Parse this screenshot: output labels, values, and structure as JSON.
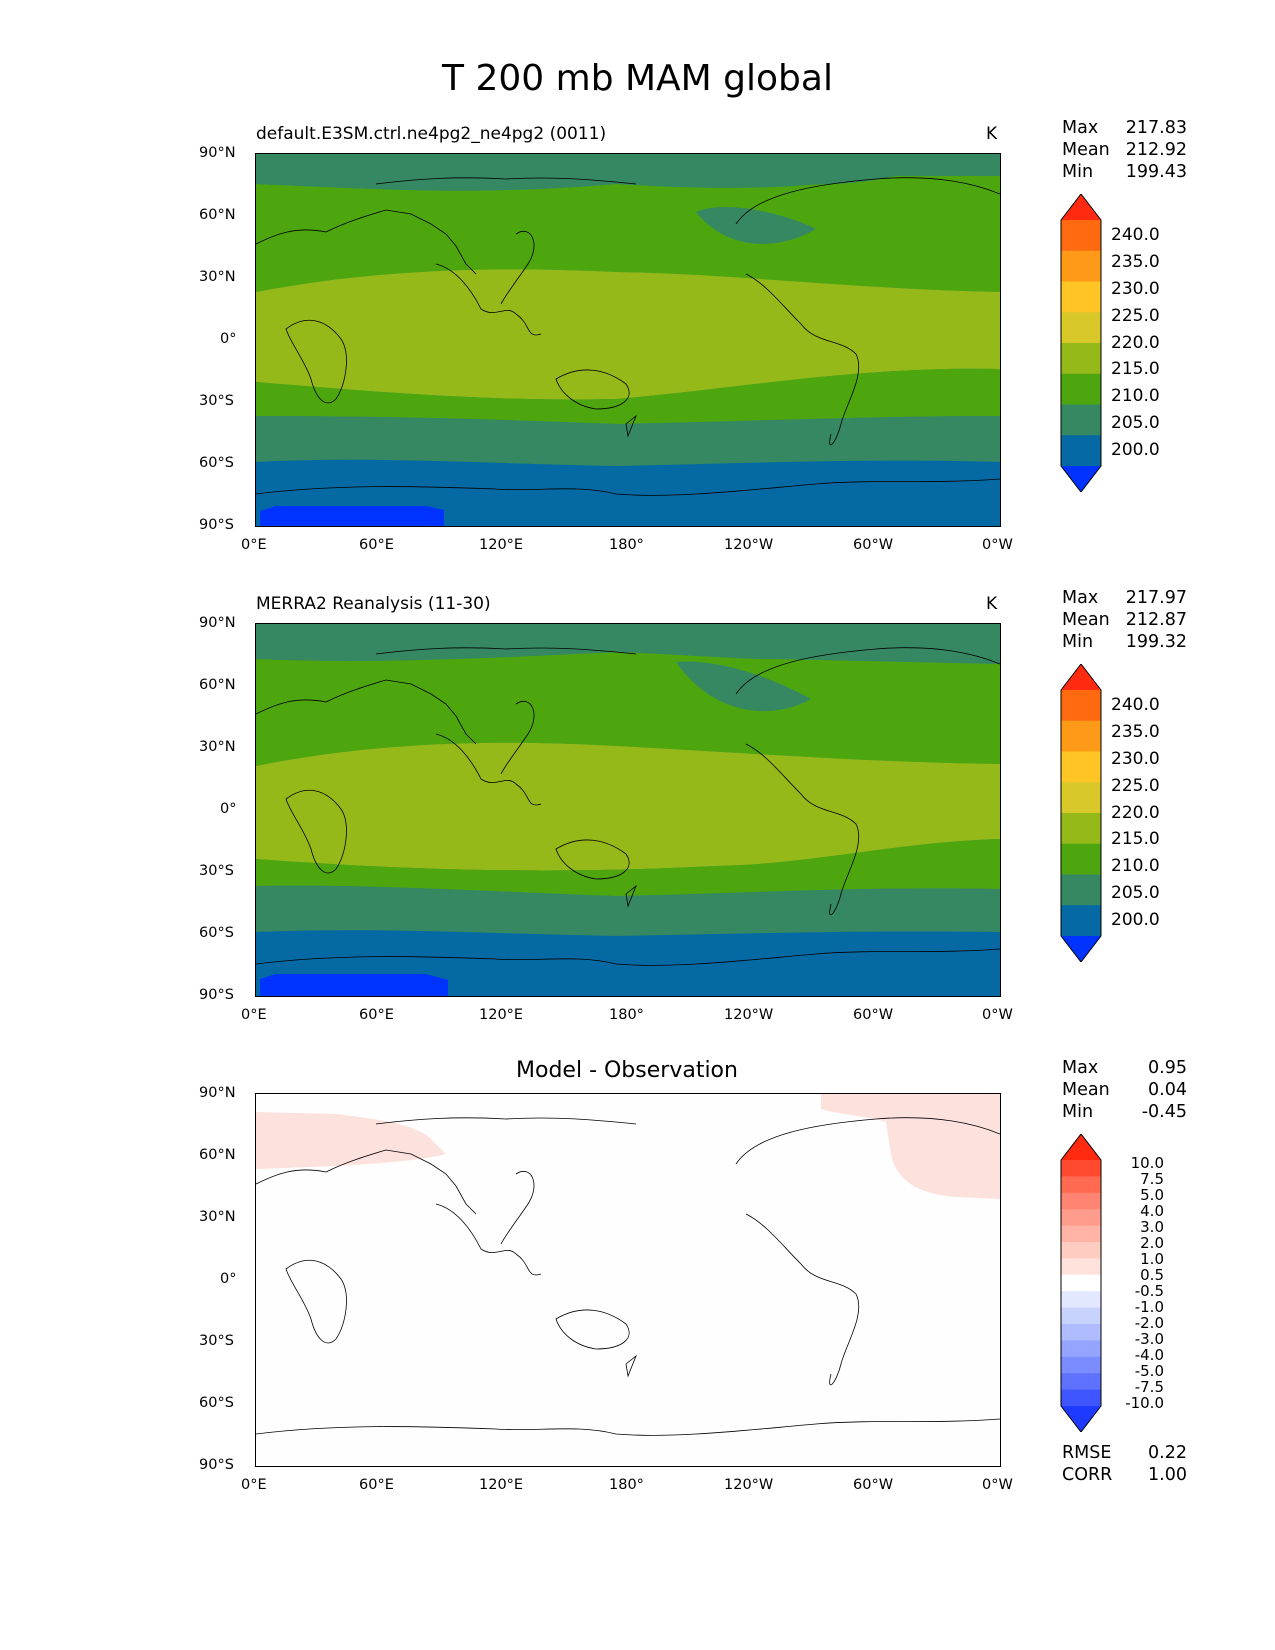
{
  "title": "T 200 mb MAM global",
  "x_ticks": [
    "0°E",
    "60°E",
    "120°E",
    "180°",
    "120°W",
    "60°W",
    "0°W"
  ],
  "y_ticks": [
    "90°N",
    "60°N",
    "30°N",
    "0°",
    "30°S",
    "60°S",
    "90°S"
  ],
  "panels": [
    {
      "title": "default.E3SM.ctrl.ne4pg2_ne4pg2 (0011)",
      "units": "K",
      "stats": {
        "max_label": "Max",
        "max": "217.83",
        "mean_label": "Mean",
        "mean": "212.92",
        "min_label": "Min",
        "min": "199.43"
      }
    },
    {
      "title": "MERRA2 Reanalysis (11-30)",
      "units": "K",
      "stats": {
        "max_label": "Max",
        "max": "217.97",
        "mean_label": "Mean",
        "mean": "212.87",
        "min_label": "Min",
        "min": "199.32"
      }
    },
    {
      "title": "Model - Observation",
      "units": "",
      "stats": {
        "max_label": "Max",
        "max": "0.95",
        "mean_label": "Mean",
        "mean": "0.04",
        "min_label": "Min",
        "min": "-0.45"
      },
      "extra": {
        "rmse_label": "RMSE",
        "rmse": "0.22",
        "corr_label": "CORR",
        "corr": "1.00"
      }
    }
  ],
  "colorbar_abs": {
    "labels": [
      "240.0",
      "235.0",
      "230.0",
      "225.0",
      "220.0",
      "215.0",
      "210.0",
      "205.0",
      "200.0"
    ],
    "colors": [
      "#ff2a10",
      "#ff6a10",
      "#ff9a18",
      "#ffc524",
      "#d8c82a",
      "#96b91a",
      "#4ea60f",
      "#358861",
      "#0569a4",
      "#0033ff"
    ]
  },
  "colorbar_diff": {
    "labels": [
      "10.0",
      "7.5",
      "5.0",
      "4.0",
      "3.0",
      "2.0",
      "1.0",
      "0.5",
      "-0.5",
      "-1.0",
      "-2.0",
      "-3.0",
      "-4.0",
      "-5.0",
      "-7.5",
      "-10.0"
    ],
    "colors": [
      "#ff2a10",
      "#ff4a30",
      "#ff6a50",
      "#ff8472",
      "#ff9c8c",
      "#ffb4a6",
      "#ffccc2",
      "#ffe2dc",
      "#ffffff",
      "#e2e8ff",
      "#c8d2ff",
      "#afbcff",
      "#94a4ff",
      "#7a8cff",
      "#5e72ff",
      "#3f56ff",
      "#1e3aff"
    ]
  },
  "field_colors": {
    "lv200": "#0033ff",
    "lv205": "#0569a4",
    "lv210": "#358861",
    "lv215": "#4ea60f",
    "lv220": "#96b91a",
    "diff_pos": "#fde1dc",
    "diff_zero": "#fefefe"
  },
  "colorbar_shown_range": {
    "abs": [
      195,
      245
    ],
    "diff": [
      -12,
      12
    ]
  }
}
